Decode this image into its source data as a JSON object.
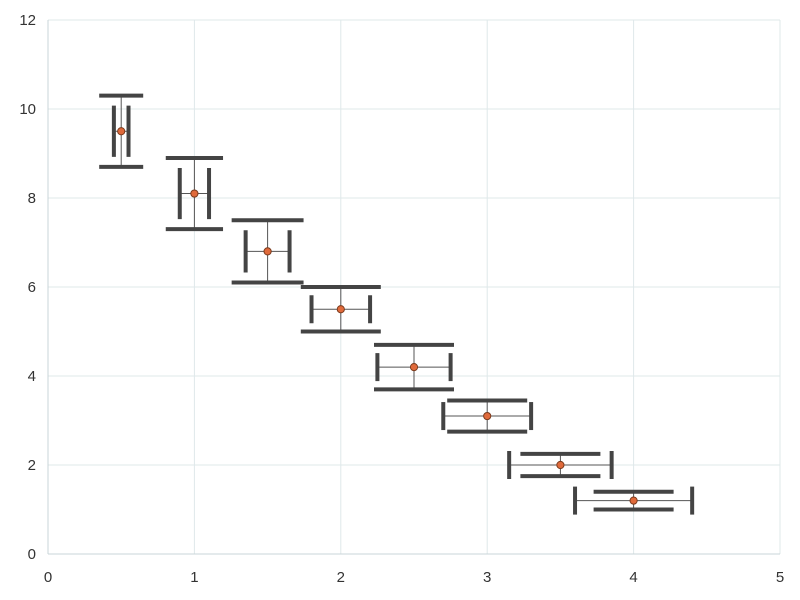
{
  "chart_data": {
    "type": "scatter",
    "title": "",
    "xlabel": "",
    "ylabel": "",
    "xlim": [
      0,
      5
    ],
    "ylim": [
      0,
      12
    ],
    "x_ticks": [
      0,
      1,
      2,
      3,
      4,
      5
    ],
    "y_ticks": [
      0,
      2,
      4,
      6,
      8,
      10,
      12
    ],
    "x_tick_labels": [
      "0",
      "1",
      "2",
      "3",
      "4",
      "5"
    ],
    "y_tick_labels": [
      "0",
      "2",
      "4",
      "6",
      "8",
      "10",
      "12"
    ],
    "grid": true,
    "legend": "none",
    "colors": {
      "grid": "#dfe8ea",
      "axis": "#c9d5d8",
      "errorbar": "#444444",
      "errorline": "#555555",
      "marker_fill": "#e06a3b",
      "marker_edge": "#7a3a1c"
    },
    "points": [
      {
        "x": 0.5,
        "y": 9.5,
        "xerr": 0.05,
        "yerr": 0.8
      },
      {
        "x": 1.0,
        "y": 8.1,
        "xerr": 0.1,
        "yerr": 0.8
      },
      {
        "x": 1.5,
        "y": 6.8,
        "xerr": 0.15,
        "yerr": 0.7
      },
      {
        "x": 2.0,
        "y": 5.5,
        "xerr": 0.2,
        "yerr": 0.5
      },
      {
        "x": 2.5,
        "y": 4.2,
        "xerr": 0.25,
        "yerr": 0.5
      },
      {
        "x": 3.0,
        "y": 3.1,
        "xerr": 0.3,
        "yerr": 0.35
      },
      {
        "x": 3.5,
        "y": 2.0,
        "xerr": 0.35,
        "yerr": 0.25
      },
      {
        "x": 4.0,
        "y": 1.2,
        "xerr": 0.4,
        "yerr": 0.2
      }
    ]
  }
}
